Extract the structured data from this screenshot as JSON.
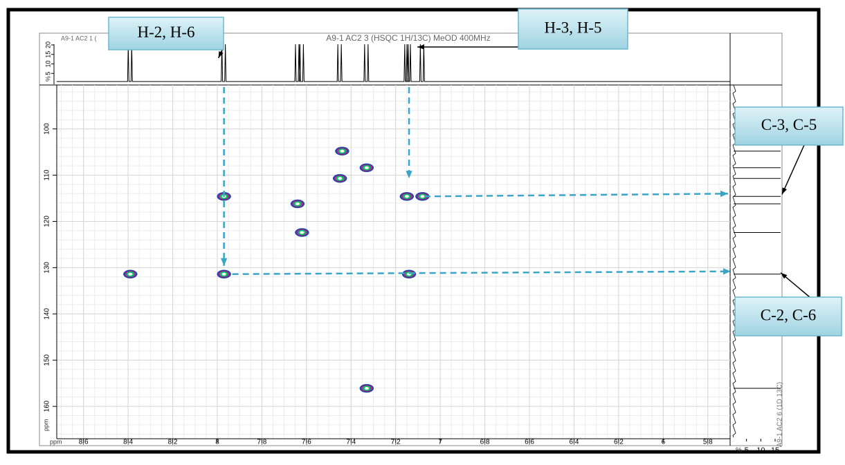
{
  "chart_data": {
    "type": "scatter",
    "title": "A9-1 AC2 3 (HSQC 1H/13C) MeOD 400MHz",
    "top_label": "A9-1 AC2 1 (",
    "right_label": "A9-1 AC2 6 (1D 13C)",
    "xlabel": "ppm",
    "ylabel": "ppm",
    "top_unit": "%",
    "right_unit": "%",
    "top_ticks": [
      5,
      10,
      15,
      20
    ],
    "right_ticks": [
      5,
      10,
      15
    ],
    "x": [
      7.97,
      7.97,
      8.39,
      7.64,
      7.62,
      7.44,
      7.45,
      7.33,
      7.15,
      7.08,
      7.14,
      7.33
    ],
    "y": [
      114.6,
      131.4,
      131.4,
      116.2,
      122.4,
      104.8,
      110.7,
      108.4,
      114.6,
      114.6,
      131.4,
      156.1
    ],
    "xlim": [
      8.72,
      5.7
    ],
    "ylim": [
      90.5,
      167
    ],
    "xticks": [
      {
        "value": 8.6,
        "label": "8,6"
      },
      {
        "value": 8.4,
        "label": "8,4"
      },
      {
        "value": 8.2,
        "label": "8,2"
      },
      8,
      {
        "value": 7.8,
        "label": "7,8"
      },
      {
        "value": 7.6,
        "label": "7,6"
      },
      {
        "value": 7.4,
        "label": "7,4"
      },
      {
        "value": 7.2,
        "label": "7,2"
      },
      7,
      {
        "value": 6.8,
        "label": "6,8"
      },
      {
        "value": 6.6,
        "label": "6,6"
      },
      {
        "value": 6.4,
        "label": "6,4"
      },
      {
        "value": 6.2,
        "label": "6,2"
      },
      6,
      {
        "value": 5.8,
        "label": "5,8"
      }
    ],
    "yticks": [
      100,
      110,
      120,
      130,
      140,
      150,
      160
    ],
    "grid": true,
    "annotations": [
      "H-2, H-6",
      "H-3, H-5",
      "C-3, C-5",
      "C-2, C-6"
    ]
  }
}
